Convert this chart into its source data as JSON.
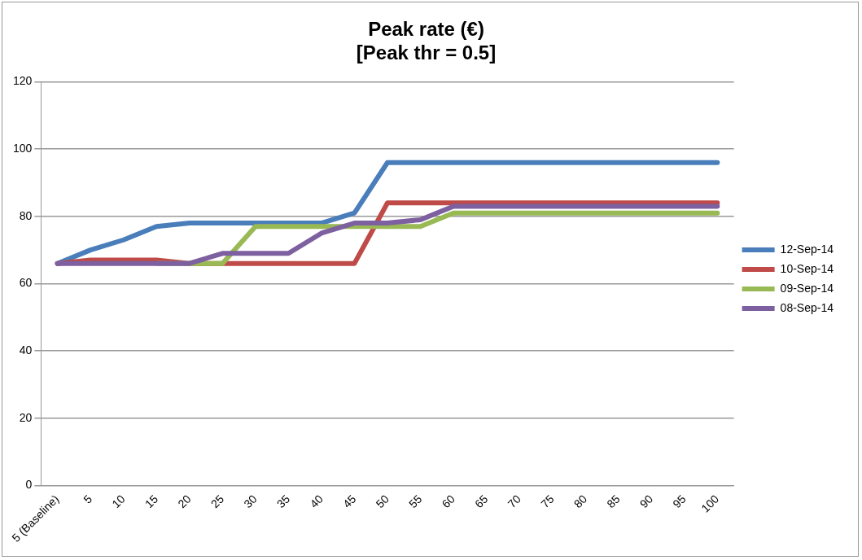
{
  "chart_data": {
    "type": "line",
    "title": "Peak rate (€)\n[Peak thr = 0.5]",
    "categories": [
      "5 (Baseline)",
      "5",
      "10",
      "15",
      "20",
      "25",
      "30",
      "35",
      "40",
      "45",
      "50",
      "55",
      "60",
      "65",
      "70",
      "75",
      "80",
      "85",
      "90",
      "95",
      "100"
    ],
    "series": [
      {
        "name": "12-Sep-14",
        "color": "#4a7ebb",
        "values": [
          66,
          70,
          73,
          77,
          78,
          78,
          78,
          78,
          78,
          81,
          96,
          96,
          96,
          96,
          96,
          96,
          96,
          96,
          96,
          96,
          96
        ]
      },
      {
        "name": "10-Sep-14",
        "color": "#be4b48",
        "values": [
          66,
          67,
          67,
          67,
          66,
          66,
          66,
          66,
          66,
          66,
          84,
          84,
          84,
          84,
          84,
          84,
          84,
          84,
          84,
          84,
          84
        ]
      },
      {
        "name": "09-Sep-14",
        "color": "#98b954",
        "values": [
          null,
          null,
          null,
          66,
          66,
          66,
          77,
          77,
          77,
          77,
          77,
          77,
          81,
          81,
          81,
          81,
          81,
          81,
          81,
          81,
          81
        ]
      },
      {
        "name": "08-Sep-14",
        "color": "#7d60a0",
        "values": [
          66,
          66,
          66,
          66,
          66,
          69,
          69,
          69,
          75,
          78,
          78,
          79,
          83,
          83,
          83,
          83,
          83,
          83,
          83,
          83,
          83
        ]
      }
    ],
    "ylim": [
      0,
      120
    ],
    "yticks": [
      0,
      20,
      40,
      60,
      80,
      100,
      120
    ],
    "grid": "y",
    "legend": "right",
    "marker": "none",
    "line_style": "solid"
  }
}
